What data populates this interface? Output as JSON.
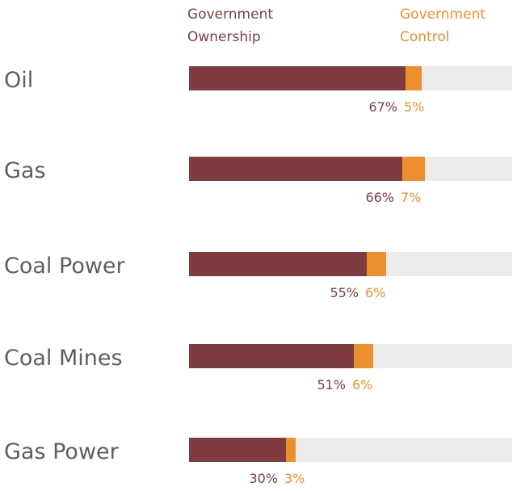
{
  "chart_data": {
    "type": "bar",
    "orientation": "horizontal",
    "stacked": true,
    "categories": [
      "Oil",
      "Gas",
      "Coal Power",
      "Coal Mines",
      "Gas Power"
    ],
    "xlim": [
      0,
      100
    ],
    "grid": false,
    "legend_position": "top",
    "series": [
      {
        "name": "Government Ownership",
        "values": [
          67,
          66,
          55,
          51,
          30
        ],
        "labels": [
          "67%",
          "66%",
          "55%",
          "51%",
          "30%"
        ]
      },
      {
        "name": "Government Control",
        "values": [
          5,
          7,
          6,
          6,
          3
        ],
        "labels": [
          "5%",
          "7%",
          "6%",
          "6%",
          "3%"
        ]
      }
    ],
    "legend": {
      "ownership": [
        "Government",
        "Ownership"
      ],
      "control": [
        "Government",
        "Control"
      ]
    }
  },
  "colors": {
    "ownership": "#7f3c3e",
    "control": "#ee8f2e",
    "track": "#ececec",
    "category_text": "#5f5f5f"
  }
}
